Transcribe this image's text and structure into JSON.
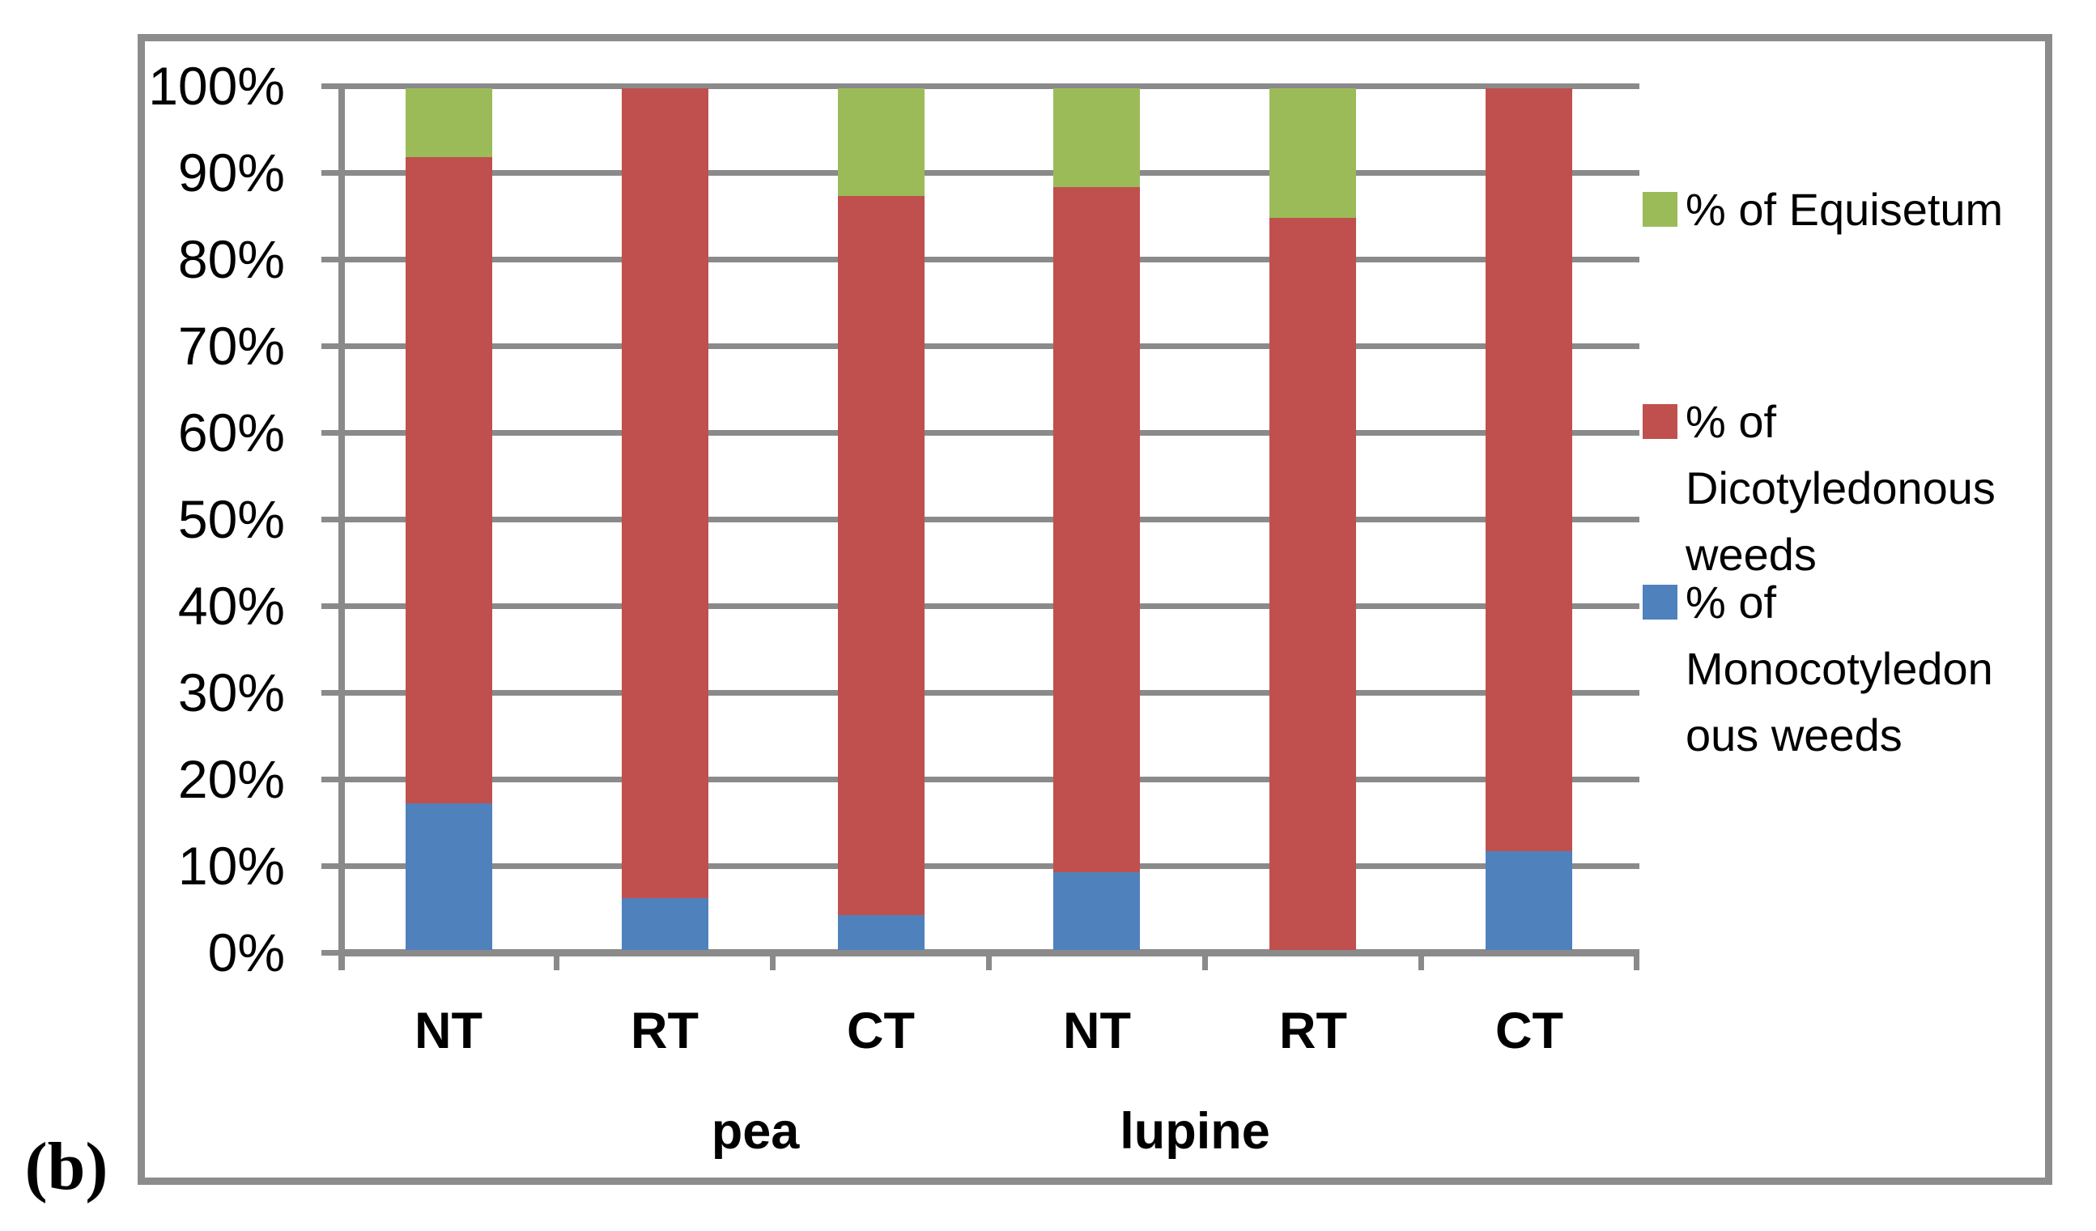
{
  "figure_label": "(b)",
  "colors": {
    "monocot_blue": "#4F81BD",
    "dicot_red": "#C0504D",
    "equisetum_green": "#9BBB59",
    "gridline_gray": "#8A8A8A",
    "frame_gray": "#8C8C8C",
    "text_black": "#000000"
  },
  "y_axis": {
    "tick_labels": [
      "100%",
      "90%",
      "80%",
      "70%",
      "60%",
      "50%",
      "40%",
      "30%",
      "20%",
      "10%",
      "0%"
    ]
  },
  "x_axis": {
    "treatment_labels": [
      "NT",
      "RT",
      "CT",
      "NT",
      "RT",
      "CT"
    ],
    "group_labels": [
      "pea",
      "lupine"
    ]
  },
  "legend": [
    {
      "series": "equisetum",
      "color": "#9BBB59",
      "lines": [
        "% of Equisetum"
      ]
    },
    {
      "series": "dicotyledonous",
      "color": "#C0504D",
      "lines": [
        "% of",
        "Dicotyledonous",
        "weeds"
      ]
    },
    {
      "series": "monocotyledonous",
      "color": "#4F81BD",
      "lines": [
        "% of",
        "Monocotyledon",
        "ous weeds"
      ]
    }
  ],
  "chart_data": {
    "type": "bar",
    "stacked": true,
    "unit": "percent",
    "title": "",
    "xlabel": "",
    "ylabel": "",
    "ylim": [
      0,
      100
    ],
    "ytick_step": 10,
    "grid": true,
    "legend_position": "right",
    "categories": [
      "pea NT",
      "pea RT",
      "pea CT",
      "lupine NT",
      "lupine RT",
      "lupine CT"
    ],
    "series": [
      {
        "name": "% of Monocotyledonous weeds",
        "color": "#4F81BD",
        "values": [
          17,
          6,
          4,
          9,
          0,
          11.5
        ]
      },
      {
        "name": "% of Dicotyledonous weeds",
        "color": "#C0504D",
        "values": [
          75,
          94,
          83.5,
          79.5,
          85,
          88.5
        ]
      },
      {
        "name": "% of Equisetum",
        "color": "#9BBB59",
        "values": [
          8,
          0,
          12.5,
          11.5,
          15,
          0
        ]
      }
    ]
  }
}
